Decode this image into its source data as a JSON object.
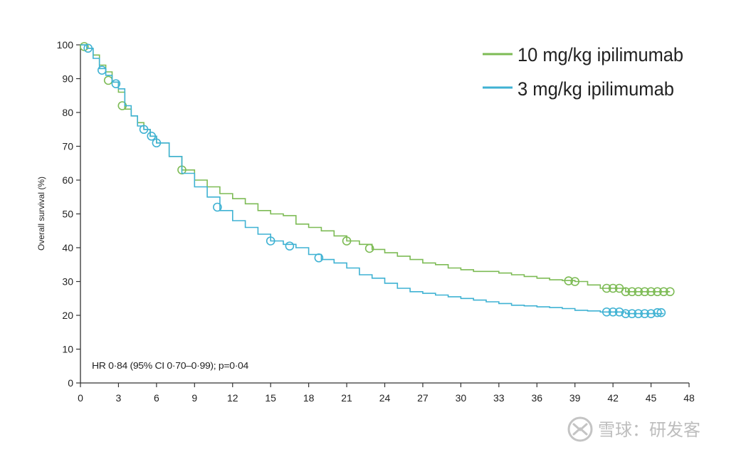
{
  "chart_data": {
    "type": "line",
    "xlabel": "",
    "ylabel": "Overall survival (%)",
    "xlim": [
      0,
      48
    ],
    "ylim": [
      0,
      100
    ],
    "xticks": [
      0,
      3,
      6,
      9,
      12,
      15,
      18,
      21,
      24,
      27,
      30,
      33,
      36,
      39,
      42,
      45,
      48
    ],
    "yticks": [
      0,
      10,
      20,
      30,
      40,
      50,
      60,
      70,
      80,
      90,
      100
    ],
    "grid": false,
    "legend_position": "top-right",
    "annotation": "HR 0·84 (95% CI 0·70–0·99); p=0·04",
    "series": [
      {
        "name": "10 mg/kg ipilimumab",
        "color": "#7dbb55",
        "points": [
          [
            0,
            100
          ],
          [
            0.5,
            99
          ],
          [
            1,
            97
          ],
          [
            1.5,
            94
          ],
          [
            2,
            92
          ],
          [
            2.5,
            89
          ],
          [
            3,
            86
          ],
          [
            3.5,
            81
          ],
          [
            4,
            79
          ],
          [
            4.5,
            77
          ],
          [
            5,
            75
          ],
          [
            5.5,
            73
          ],
          [
            6,
            71
          ],
          [
            7,
            67
          ],
          [
            8,
            63
          ],
          [
            9,
            60
          ],
          [
            10,
            58
          ],
          [
            11,
            56
          ],
          [
            12,
            54.5
          ],
          [
            13,
            53
          ],
          [
            14,
            51
          ],
          [
            15,
            50
          ],
          [
            16,
            49.5
          ],
          [
            17,
            47
          ],
          [
            18,
            46
          ],
          [
            19,
            45
          ],
          [
            20,
            43.5
          ],
          [
            21,
            42
          ],
          [
            22,
            41
          ],
          [
            23,
            39.5
          ],
          [
            24,
            38.5
          ],
          [
            25,
            37.5
          ],
          [
            26,
            36.5
          ],
          [
            27,
            35.5
          ],
          [
            28,
            35
          ],
          [
            29,
            34
          ],
          [
            30,
            33.5
          ],
          [
            31,
            33
          ],
          [
            32,
            33
          ],
          [
            33,
            32.5
          ],
          [
            34,
            32
          ],
          [
            35,
            31.5
          ],
          [
            36,
            31
          ],
          [
            37,
            30.5
          ],
          [
            38,
            30.3
          ],
          [
            39,
            30
          ],
          [
            40,
            29
          ],
          [
            41,
            28
          ],
          [
            42,
            28
          ],
          [
            43,
            27
          ],
          [
            44,
            27
          ],
          [
            45,
            27
          ],
          [
            46,
            27
          ],
          [
            46.5,
            27
          ]
        ],
        "censored": [
          [
            0.3,
            99.5
          ],
          [
            2.2,
            89.5
          ],
          [
            3.3,
            82
          ],
          [
            8,
            63
          ],
          [
            21,
            42
          ],
          [
            22.8,
            39.8
          ],
          [
            38.5,
            30.2
          ],
          [
            39,
            30
          ],
          [
            41.5,
            28
          ],
          [
            42,
            28
          ],
          [
            42.5,
            28
          ],
          [
            43,
            27
          ],
          [
            43.5,
            27
          ],
          [
            44,
            27
          ],
          [
            44.5,
            27
          ],
          [
            45,
            27
          ],
          [
            45.5,
            27
          ],
          [
            46,
            27
          ],
          [
            46.5,
            27
          ]
        ]
      },
      {
        "name": "3 mg/kg ipilimumab",
        "color": "#3fb2d3",
        "points": [
          [
            0,
            100
          ],
          [
            0.5,
            99
          ],
          [
            1,
            96
          ],
          [
            1.5,
            93
          ],
          [
            2,
            91
          ],
          [
            2.5,
            89
          ],
          [
            3,
            87
          ],
          [
            3.5,
            82
          ],
          [
            4,
            79
          ],
          [
            4.5,
            76
          ],
          [
            5,
            75
          ],
          [
            5.5,
            73
          ],
          [
            6,
            71
          ],
          [
            7,
            67
          ],
          [
            8,
            62
          ],
          [
            9,
            58
          ],
          [
            10,
            55
          ],
          [
            11,
            51
          ],
          [
            12,
            48
          ],
          [
            13,
            46
          ],
          [
            14,
            44
          ],
          [
            15,
            42
          ],
          [
            16,
            41
          ],
          [
            17,
            40
          ],
          [
            18,
            38
          ],
          [
            19,
            36.5
          ],
          [
            20,
            35.5
          ],
          [
            21,
            34
          ],
          [
            22,
            32
          ],
          [
            23,
            31
          ],
          [
            24,
            29.5
          ],
          [
            25,
            28
          ],
          [
            26,
            27
          ],
          [
            27,
            26.5
          ],
          [
            28,
            26
          ],
          [
            29,
            25.5
          ],
          [
            30,
            25
          ],
          [
            31,
            24.5
          ],
          [
            32,
            24
          ],
          [
            33,
            23.5
          ],
          [
            34,
            23
          ],
          [
            35,
            22.8
          ],
          [
            36,
            22.5
          ],
          [
            37,
            22.3
          ],
          [
            38,
            22
          ],
          [
            39,
            21.5
          ],
          [
            40,
            21.3
          ],
          [
            41,
            21
          ],
          [
            42,
            21
          ],
          [
            43,
            20.5
          ],
          [
            44,
            20.5
          ],
          [
            45,
            20.5
          ],
          [
            46,
            20.5
          ]
        ],
        "censored": [
          [
            0.6,
            99
          ],
          [
            1.7,
            92.5
          ],
          [
            2.8,
            88.5
          ],
          [
            5,
            75
          ],
          [
            5.6,
            73
          ],
          [
            6,
            71
          ],
          [
            10.8,
            52
          ],
          [
            15,
            42
          ],
          [
            16.5,
            40.5
          ],
          [
            18.8,
            37
          ],
          [
            41.5,
            21
          ],
          [
            42,
            21
          ],
          [
            42.5,
            21
          ],
          [
            43,
            20.5
          ],
          [
            43.5,
            20.5
          ],
          [
            44,
            20.5
          ],
          [
            44.5,
            20.5
          ],
          [
            45,
            20.5
          ],
          [
            45.5,
            20.8
          ],
          [
            45.8,
            20.8
          ]
        ]
      }
    ]
  },
  "watermark": {
    "text": "雪球：研发客",
    "icon": "xueqiu-logo-icon"
  }
}
